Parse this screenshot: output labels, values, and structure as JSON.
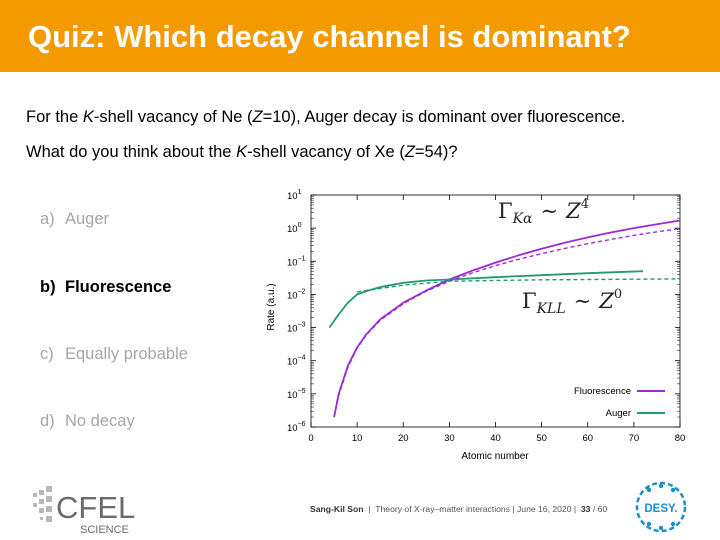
{
  "slide": {
    "title": "Quiz: Which decay channel is dominant?",
    "line1": {
      "pre": "For the ",
      "it1": "K",
      "mid1": "-shell vacancy of Ne (",
      "it2": "Z",
      "post": "=10), Auger decay is dominant over fluorescence."
    },
    "line2": {
      "pre": "What do you think about the ",
      "it1": "K",
      "mid1": "-shell vacancy of Xe (",
      "it2": "Z",
      "post": "=54)?"
    },
    "options": [
      {
        "letter": "a)",
        "label": "Auger",
        "selected": false
      },
      {
        "letter": "b)",
        "label": "Fluorescence",
        "selected": true
      },
      {
        "letter": "c)",
        "label": "Equally probable",
        "selected": false
      },
      {
        "letter": "d)",
        "label": "No decay",
        "selected": false
      }
    ]
  },
  "chart_data": {
    "type": "line",
    "xlabel": "Atomic number",
    "ylabel": "Rate (a.u.)",
    "xlim": [
      0,
      80
    ],
    "ylim_log10": [
      -6,
      1
    ],
    "xticks": [
      "0",
      "10",
      "20",
      "30",
      "40",
      "50",
      "60",
      "70",
      "80"
    ],
    "yticks": [
      {
        "base": "10",
        "exp": "1"
      },
      {
        "base": "10",
        "exp": "0"
      },
      {
        "base": "10",
        "exp": "−1"
      },
      {
        "base": "10",
        "exp": "−2"
      },
      {
        "base": "10",
        "exp": "−3"
      },
      {
        "base": "10",
        "exp": "−4"
      },
      {
        "base": "10",
        "exp": "−5"
      },
      {
        "base": "10",
        "exp": "−6"
      }
    ],
    "annotation_top": {
      "main": "Γ",
      "sub": "Kα",
      "rel": "∼",
      "base": "Z",
      "exp": "4"
    },
    "annotation_bottom": {
      "main": "Γ",
      "sub": "KLL",
      "rel": "∼",
      "base": "Z",
      "exp": "0"
    },
    "legend_position": "bottom-right",
    "series": [
      {
        "name": "Fluorescence",
        "color": "#9b2bd6",
        "style": "solid",
        "x": [
          5,
          6,
          8,
          10,
          12,
          15,
          20,
          25,
          30,
          35,
          40,
          45,
          50,
          55,
          60,
          65,
          70,
          75,
          80
        ],
        "log10_y": [
          -5.7,
          -5.0,
          -4.15,
          -3.6,
          -3.2,
          -2.75,
          -2.25,
          -1.88,
          -1.55,
          -1.28,
          -1.04,
          -0.82,
          -0.62,
          -0.44,
          -0.28,
          -0.13,
          0.0,
          0.12,
          0.23
        ]
      },
      {
        "name": "Auger",
        "color": "#1f9a73",
        "style": "solid",
        "x": [
          4,
          6,
          8,
          10,
          12,
          15,
          20,
          25,
          30,
          40,
          50,
          60,
          72
        ],
        "log10_y": [
          -3.0,
          -2.6,
          -2.25,
          -2.0,
          -1.9,
          -1.78,
          -1.65,
          -1.58,
          -1.55,
          -1.48,
          -1.42,
          -1.36,
          -1.3
        ]
      },
      {
        "name": "Z^4 fit",
        "color": "#9b2bd6",
        "style": "dashed",
        "x": [
          5,
          6,
          8,
          10,
          12,
          15,
          20,
          25,
          30,
          35,
          40,
          45,
          50,
          55,
          60,
          65,
          70,
          75,
          80
        ],
        "log10_y": [
          -5.7,
          -5.05,
          -4.2,
          -3.62,
          -3.22,
          -2.78,
          -2.28,
          -1.9,
          -1.6,
          -1.35,
          -1.13,
          -0.94,
          -0.77,
          -0.61,
          -0.47,
          -0.34,
          -0.22,
          -0.11,
          -0.01
        ]
      },
      {
        "name": "Z^0 fit",
        "color": "#1f9a73",
        "style": "dashed",
        "x": [
          10,
          20,
          30,
          40,
          50,
          60,
          70,
          80
        ],
        "log10_y": [
          -1.92,
          -1.72,
          -1.6,
          -1.58,
          -1.56,
          -1.55,
          -1.54,
          -1.53
        ]
      }
    ],
    "legend": [
      {
        "label": "Fluorescence",
        "color": "#9b2bd6"
      },
      {
        "label": "Auger",
        "color": "#1f9a73"
      }
    ]
  },
  "logos": {
    "left": {
      "text": "CFEL",
      "sub": "SCIENCE"
    },
    "right": {
      "text": "DESY."
    }
  },
  "footer": {
    "author": "Sang-Kil Son",
    "talk": "Theory of X-ray–matter interactions",
    "date": "June 16, 2020",
    "page": "33",
    "total": "/ 60"
  }
}
